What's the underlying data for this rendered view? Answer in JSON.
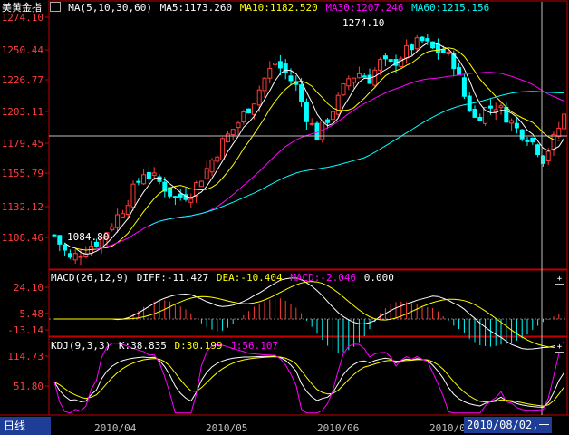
{
  "colors": {
    "up": "#ff3c3c",
    "down": "#00ffff",
    "ma5": "#ffffff",
    "ma10": "#ffff00",
    "ma30": "#ff00ff",
    "ma60": "#00ffff",
    "axis": "#c00000",
    "grid": "#c00000"
  },
  "price_panel": {
    "title": "美黄金指",
    "ma_label": "MA(5,10,30,60)",
    "ma5": "MA5:1173.260",
    "ma10": "MA10:1182.520",
    "ma30": "MA30:1207.246",
    "ma60": "MA60:1215.156",
    "y_ticks": [
      "1274.10",
      "1250.44",
      "1226.77",
      "1203.11",
      "1179.45",
      "1155.79",
      "1132.12",
      "1108.46"
    ],
    "high_label": "1274.10",
    "low_label": "1084.80"
  },
  "macd_panel": {
    "label": "MACD(26,12,9)",
    "diff": "DIFF:-11.427",
    "dea": "DEA:-10.404",
    "macd": "MACD:-2.046",
    "zero": "0.000",
    "y_ticks": [
      "24.10",
      "5.48",
      "-13.14"
    ]
  },
  "kdj_panel": {
    "label": "KDJ(9,3,3)",
    "k": "K:38.835",
    "d": "D:30.199",
    "j": "J:56.107",
    "y_ticks": [
      "114.73",
      "51.80"
    ]
  },
  "x_labels": [
    "2010/04",
    "2010/05",
    "2010/06",
    "2010/0"
  ],
  "tab_label": "日线",
  "cursor_date": "2010/08/02,一",
  "plus_icon": "+"
}
